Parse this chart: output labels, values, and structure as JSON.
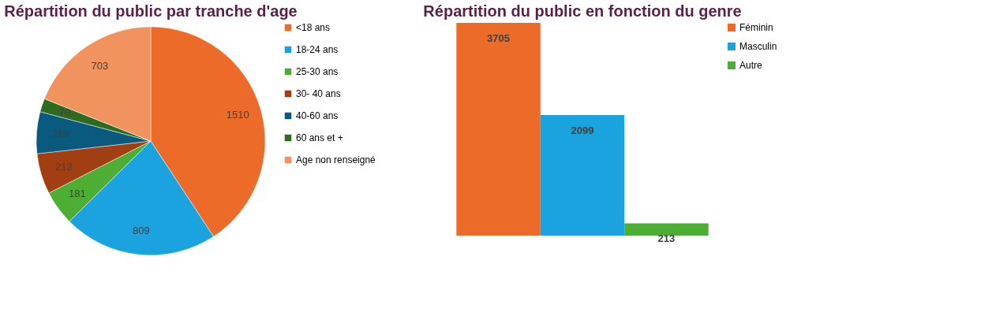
{
  "chart_data": [
    {
      "type": "pie",
      "title": "Répartition du public par tranche d'age",
      "categories": [
        "<18 ans",
        "18-24 ans",
        "25-30 ans",
        "30- 40 ans",
        " 40-60 ans",
        "60 ans et +",
        "Age non renseigné"
      ],
      "values": [
        1510,
        809,
        181,
        213,
        219,
        70,
        703
      ],
      "colors": [
        "#ed6b28",
        "#1ba3e0",
        "#4cae32",
        "#a13f12",
        "#0a5a80",
        "#2e6b1e",
        "#f0935f"
      ],
      "data_labels": true,
      "legend": "right"
    },
    {
      "type": "bar",
      "title": "Répartition du public en fonction du genre",
      "categories": [
        null,
        null,
        null
      ],
      "series": [
        {
          "name": "Féminin",
          "color": "#ed6b28",
          "values": [
            3705,
            null,
            null
          ]
        },
        {
          "name": "Masculin",
          "color": "#1ba3e0",
          "values": [
            null,
            2099,
            null
          ]
        },
        {
          "name": "Autre",
          "color": "#4cae32",
          "values": [
            null,
            null,
            213
          ]
        }
      ],
      "stacked": true,
      "data_labels": true,
      "legend": "right",
      "tick_labels": false
    }
  ]
}
